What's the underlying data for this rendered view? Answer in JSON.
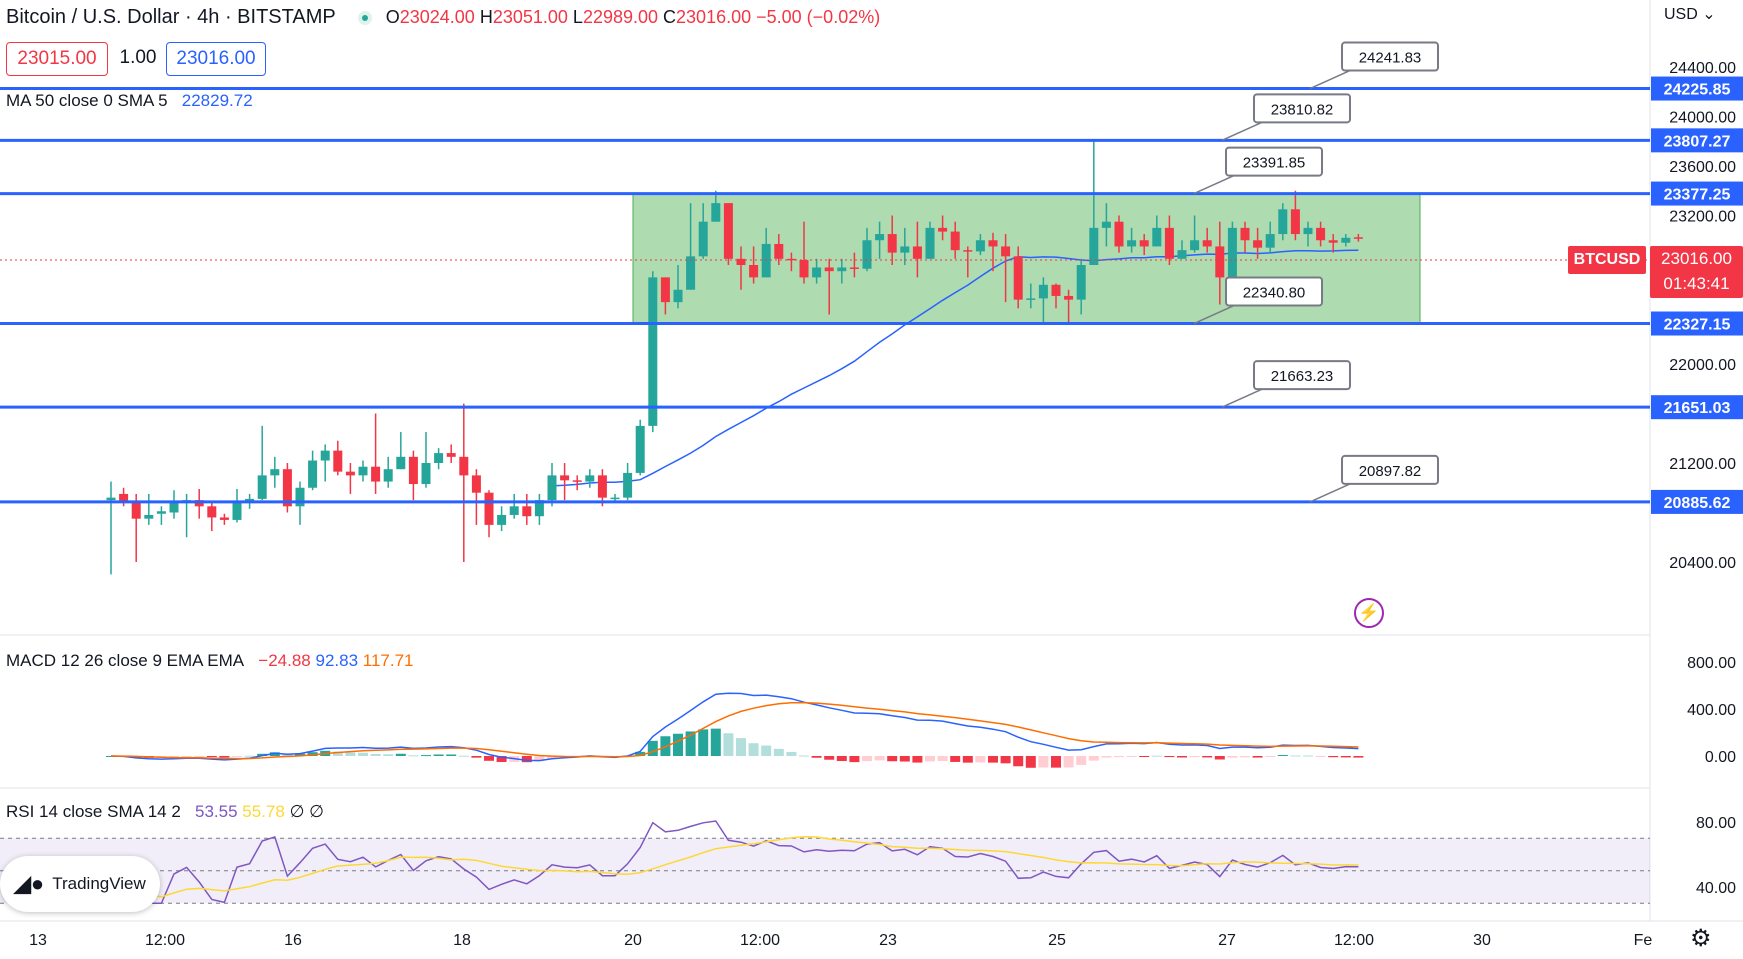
{
  "header": {
    "symbol": "Bitcoin / U.S. Dollar · 4h · BITSTAMP",
    "open_label": "O",
    "open": "23024.00",
    "high_label": "H",
    "high": "23051.00",
    "low_label": "L",
    "low": "22989.00",
    "close_label": "C",
    "close": "23016.00",
    "change": "−5.00 (−0.02%)",
    "bid": "23015.00",
    "spread": "1.00",
    "ask": "23016.00",
    "currency": "USD"
  },
  "legends": {
    "ma": "MA 50 close 0 SMA 5",
    "ma_value": "22829.72",
    "macd": "MACD 12 26 close 9 EMA EMA",
    "macd_hist": "−24.88",
    "macd_line": "92.83",
    "macd_signal": "117.71",
    "rsi": "RSI 14 close SMA 14 2",
    "rsi_value": "53.55",
    "rsi_sma": "55.78",
    "rsi_extra1": "∅",
    "rsi_extra2": "∅"
  },
  "current_price": {
    "symbol_tag": "BTCUSD",
    "price": "23016.00",
    "countdown": "01:43:41"
  },
  "branding": {
    "logo_text": "TradingView"
  },
  "colors": {
    "up": "#26a69a",
    "down": "#f23645",
    "level": "#2962ff",
    "ma": "#2962ff",
    "macd": "#2962ff",
    "signal": "#ff6d00",
    "rsi": "#7e57c2",
    "rsi_sma": "#fdd835",
    "range": "#4caf50"
  },
  "chart_data": {
    "type": "candlestick",
    "y_ticks": [
      "24400.00",
      "24000.00",
      "23600.00",
      "23200.00",
      "22000.00",
      "21200.00",
      "20400.00"
    ],
    "ylim": [
      20200,
      24600
    ],
    "x_ticks": [
      "13",
      "12:00",
      "16",
      "18",
      "20",
      "12:00",
      "23",
      "25",
      "27",
      "12:00",
      "30",
      "Fe"
    ],
    "levels": [
      {
        "label": "24225.85",
        "callout": "24241.83",
        "value": 24225.85
      },
      {
        "label": "23807.27",
        "callout": "23810.82",
        "value": 23807.27
      },
      {
        "label": "23377.25",
        "callout": "23391.85",
        "value": 23377.25
      },
      {
        "label": "22327.15",
        "callout": "22340.80",
        "value": 22327.15
      },
      {
        "label": "21651.03",
        "callout": "21663.23",
        "value": 21651.03
      },
      {
        "label": "20885.62",
        "callout": "20897.82",
        "value": 20885.62
      }
    ],
    "range_box": {
      "top": 23377,
      "bottom": 22327
    },
    "candles": [
      [
        20900,
        20920,
        21050,
        20300
      ],
      [
        20950,
        20880,
        21000,
        20850
      ],
      [
        20880,
        20750,
        20950,
        20400
      ],
      [
        20750,
        20780,
        20950,
        20700
      ],
      [
        20790,
        20810,
        20850,
        20700
      ],
      [
        20800,
        20880,
        20980,
        20750
      ],
      [
        20880,
        20900,
        20950,
        20600
      ],
      [
        20900,
        20850,
        20990,
        20750
      ],
      [
        20850,
        20760,
        20890,
        20650
      ],
      [
        20760,
        20740,
        20790,
        20700
      ],
      [
        20740,
        20890,
        20990,
        20720
      ],
      [
        20890,
        20910,
        20950,
        20830
      ],
      [
        20910,
        21100,
        21500,
        20900
      ],
      [
        21100,
        21150,
        21250,
        21000
      ],
      [
        21150,
        20850,
        21200,
        20800
      ],
      [
        20850,
        21000,
        21050,
        20700
      ],
      [
        21000,
        21220,
        21300,
        20980
      ],
      [
        21220,
        21300,
        21350,
        21050
      ],
      [
        21300,
        21130,
        21380,
        21100
      ],
      [
        21130,
        21100,
        21200,
        20950
      ],
      [
        21100,
        21170,
        21220,
        21050
      ],
      [
        21170,
        21050,
        21600,
        20950
      ],
      [
        21050,
        21150,
        21250,
        21000
      ],
      [
        21150,
        21250,
        21450,
        21150
      ],
      [
        21250,
        21030,
        21300,
        20900
      ],
      [
        21030,
        21200,
        21450,
        21000
      ],
      [
        21200,
        21280,
        21320,
        21150
      ],
      [
        21280,
        21250,
        21350,
        21200
      ],
      [
        21250,
        21100,
        21680,
        20400
      ],
      [
        21100,
        20960,
        21150,
        20700
      ],
      [
        20960,
        20700,
        20980,
        20600
      ],
      [
        20700,
        20780,
        20850,
        20650
      ],
      [
        20780,
        20850,
        20950,
        20750
      ],
      [
        20850,
        20770,
        20950,
        20700
      ],
      [
        20770,
        20900,
        20950,
        20700
      ],
      [
        20900,
        21100,
        21200,
        20850
      ],
      [
        21100,
        21060,
        21200,
        20900
      ],
      [
        21060,
        21050,
        21100,
        20980
      ],
      [
        21050,
        21100,
        21150,
        21000
      ],
      [
        21100,
        20920,
        21150,
        20850
      ],
      [
        20920,
        20920,
        20950,
        20880
      ],
      [
        20920,
        21120,
        21200,
        20900
      ],
      [
        21120,
        21500,
        21550,
        21100
      ],
      [
        21500,
        22700,
        22750,
        21450
      ],
      [
        22700,
        22500,
        22700,
        22400
      ],
      [
        22500,
        22600,
        22800,
        22450
      ],
      [
        22600,
        22870,
        23300,
        22600
      ],
      [
        22870,
        23150,
        23300,
        22850
      ],
      [
        23150,
        23300,
        23400,
        23150
      ],
      [
        23300,
        22850,
        23300,
        22800
      ],
      [
        22850,
        22800,
        22950,
        22600
      ],
      [
        22800,
        22700,
        22950,
        22650
      ],
      [
        22700,
        22970,
        23100,
        22700
      ],
      [
        22970,
        22850,
        23050,
        22800
      ],
      [
        22850,
        22840,
        22900,
        22750
      ],
      [
        22840,
        22700,
        23150,
        22650
      ],
      [
        22700,
        22780,
        22850,
        22650
      ],
      [
        22780,
        22750,
        22850,
        22400
      ],
      [
        22750,
        22780,
        22850,
        22650
      ],
      [
        22780,
        22770,
        22900,
        22700
      ],
      [
        22770,
        23000,
        23100,
        22750
      ],
      [
        23000,
        23050,
        23150,
        22850
      ],
      [
        23050,
        22900,
        23200,
        22800
      ],
      [
        22900,
        22950,
        23100,
        22800
      ],
      [
        22950,
        22850,
        23150,
        22700
      ],
      [
        22850,
        23100,
        23150,
        22850
      ],
      [
        23100,
        23070,
        23200,
        23000
      ],
      [
        23070,
        22920,
        23150,
        22850
      ],
      [
        22920,
        22910,
        22950,
        22700
      ],
      [
        22910,
        23000,
        23050,
        22880
      ],
      [
        23000,
        22950,
        23060,
        22750
      ],
      [
        22950,
        22870,
        23050,
        22500
      ],
      [
        22870,
        22520,
        22950,
        22450
      ],
      [
        22520,
        22530,
        22650,
        22450
      ],
      [
        22530,
        22640,
        22700,
        22330
      ],
      [
        22640,
        22550,
        22650,
        22450
      ],
      [
        22550,
        22520,
        22600,
        22330
      ],
      [
        22520,
        22800,
        22850,
        22400
      ],
      [
        22800,
        23100,
        23800,
        22800
      ],
      [
        23100,
        23150,
        23300,
        22950
      ],
      [
        23150,
        22950,
        23200,
        22900
      ],
      [
        22950,
        23000,
        23100,
        22900
      ],
      [
        23000,
        22950,
        23050,
        22880
      ],
      [
        22950,
        23100,
        23200,
        22950
      ],
      [
        23100,
        22850,
        23200,
        22800
      ],
      [
        22850,
        22920,
        23000,
        22850
      ],
      [
        22920,
        23000,
        23200,
        22900
      ],
      [
        23000,
        22950,
        23100,
        22900
      ],
      [
        22950,
        22700,
        23150,
        22480
      ],
      [
        22700,
        23100,
        23150,
        22800
      ],
      [
        23100,
        23000,
        23150,
        22900
      ],
      [
        23000,
        22940,
        23100,
        22850
      ],
      [
        22940,
        23050,
        23150,
        22900
      ],
      [
        23050,
        23250,
        23300,
        23000
      ],
      [
        23250,
        23050,
        23400,
        23000
      ],
      [
        23050,
        23100,
        23150,
        22950
      ],
      [
        23100,
        23000,
        23150,
        22950
      ],
      [
        23000,
        22980,
        23050,
        22900
      ],
      [
        22980,
        23020,
        23050,
        22950
      ],
      [
        23024,
        23016,
        23051,
        22989
      ]
    ],
    "ma_start_x": 546,
    "macd": {
      "ylim": [
        -300,
        1000
      ],
      "y_ticks": [
        "800.00",
        "400.00",
        "0.00"
      ]
    },
    "rsi": {
      "ylim": [
        30,
        90
      ],
      "y_ticks": [
        "80.00",
        "40.00"
      ],
      "bands": [
        70,
        50,
        30
      ]
    }
  }
}
